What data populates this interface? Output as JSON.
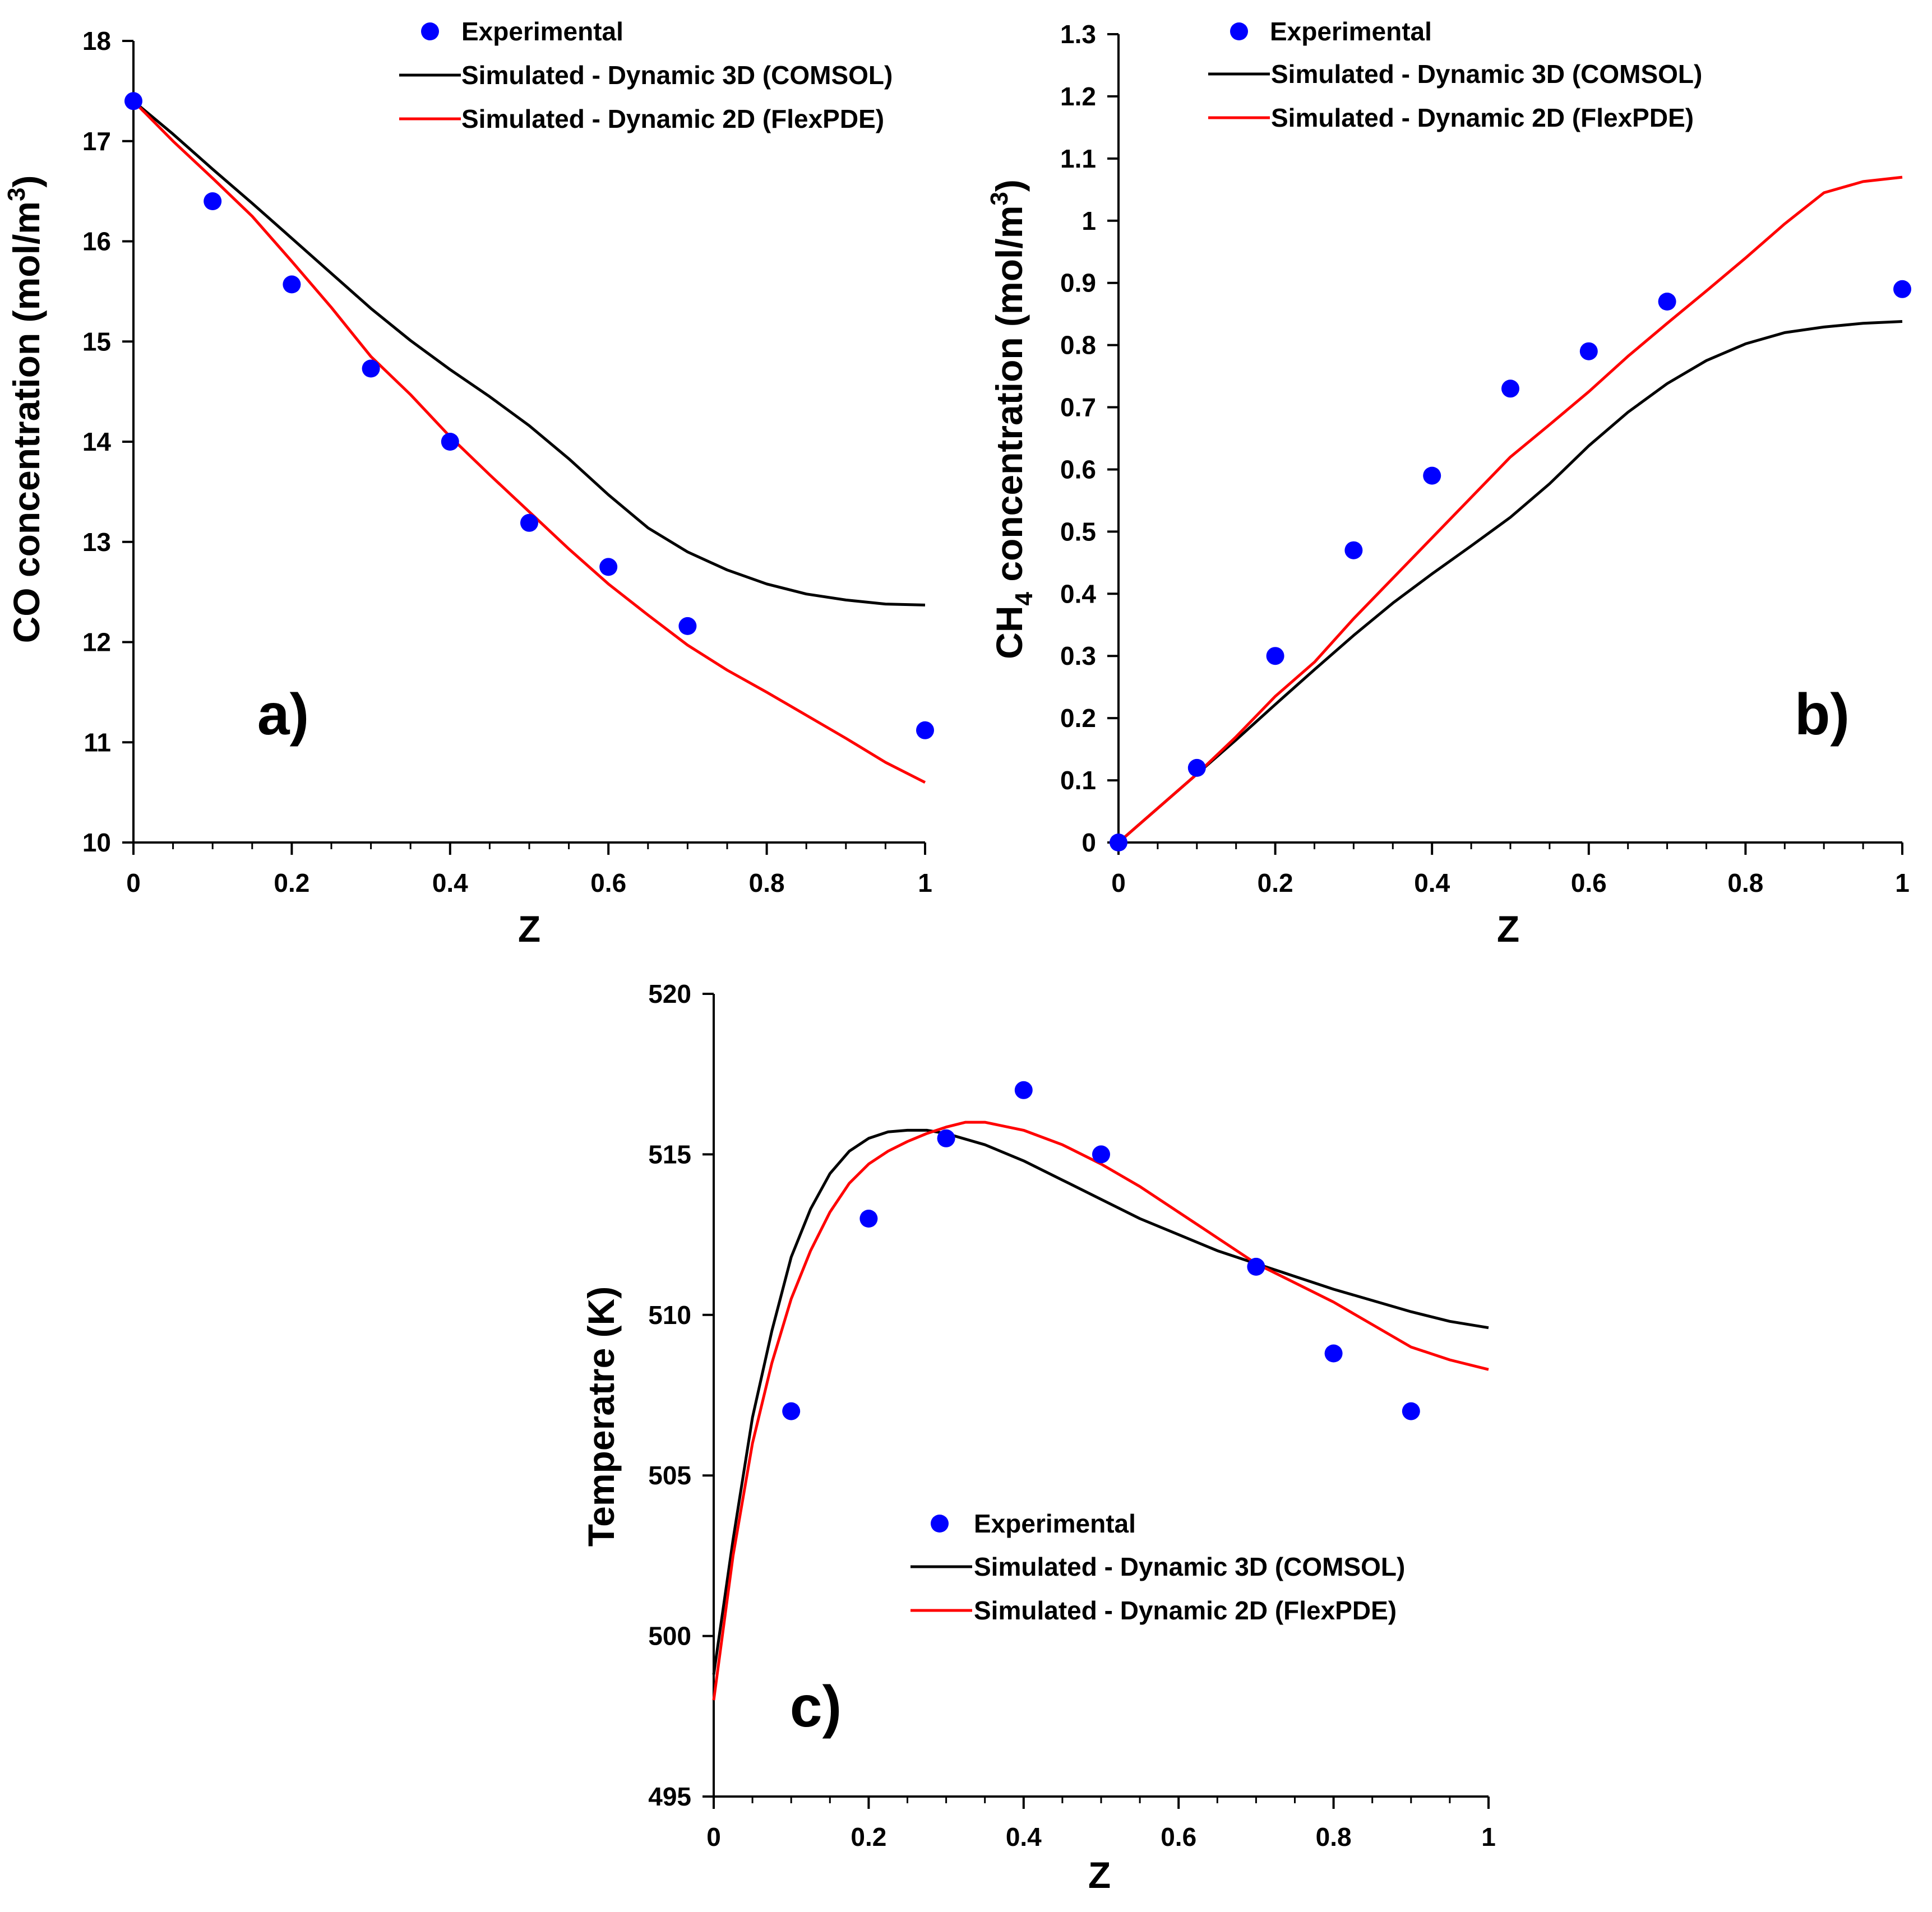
{
  "legend": {
    "experimental": "Experimental",
    "sim3d": "Simulated - Dynamic 3D (COMSOL)",
    "sim2d": "Simulated - Dynamic 2D (FlexPDE)"
  },
  "colors": {
    "experimental": "#0000ff",
    "sim3d": "#000000",
    "sim2d": "#ff0000",
    "axis": "#000000"
  },
  "chart_data": [
    {
      "id": "a",
      "type": "line",
      "panel_label": "a)",
      "xlabel": "Z",
      "ylabel": "CO concentration (mol/m3)",
      "ylabel_parts": {
        "main": "CO concentration (mol/m",
        "sup": "3",
        "close": ")"
      },
      "xlim": [
        0,
        1
      ],
      "ylim": [
        10,
        18
      ],
      "xticks": [
        0,
        0.2,
        0.4,
        0.6,
        0.8,
        1
      ],
      "xtick_labels": [
        "0",
        "0.2",
        "0.4",
        "0.6",
        "0.8",
        "1"
      ],
      "yticks": [
        10,
        11,
        12,
        13,
        14,
        15,
        16,
        17,
        18
      ],
      "ytick_labels": [
        "10",
        "11",
        "12",
        "13",
        "14",
        "15",
        "16",
        "17",
        "18"
      ],
      "minor_x_step": 0.05,
      "series": [
        {
          "name": "Experimental",
          "style": "scatter",
          "x": [
            0,
            0.1,
            0.2,
            0.3,
            0.4,
            0.5,
            0.6,
            0.7,
            1.0
          ],
          "y": [
            17.4,
            16.4,
            15.57,
            14.73,
            14.0,
            13.19,
            12.75,
            12.16,
            11.12
          ]
        },
        {
          "name": "Simulated - Dynamic 3D (COMSOL)",
          "style": "line",
          "x": [
            0,
            0.05,
            0.1,
            0.15,
            0.2,
            0.25,
            0.3,
            0.35,
            0.4,
            0.45,
            0.5,
            0.55,
            0.6,
            0.65,
            0.7,
            0.75,
            0.8,
            0.85,
            0.9,
            0.95,
            1.0
          ],
          "y": [
            17.4,
            17.07,
            16.72,
            16.38,
            16.03,
            15.68,
            15.33,
            15.01,
            14.72,
            14.45,
            14.16,
            13.83,
            13.47,
            13.14,
            12.9,
            12.72,
            12.58,
            12.48,
            12.42,
            12.38,
            12.37
          ]
        },
        {
          "name": "Simulated - Dynamic 2D (FlexPDE)",
          "style": "line",
          "x": [
            0,
            0.05,
            0.1,
            0.15,
            0.2,
            0.25,
            0.3,
            0.35,
            0.4,
            0.45,
            0.5,
            0.55,
            0.6,
            0.65,
            0.7,
            0.75,
            0.8,
            0.85,
            0.9,
            0.95,
            1.0
          ],
          "y": [
            17.4,
            17.0,
            16.63,
            16.25,
            15.8,
            15.34,
            14.85,
            14.47,
            14.05,
            13.67,
            13.3,
            12.93,
            12.58,
            12.27,
            11.97,
            11.72,
            11.5,
            11.27,
            11.04,
            10.8,
            10.6
          ]
        }
      ]
    },
    {
      "id": "b",
      "type": "line",
      "panel_label": "b)",
      "xlabel": "Z",
      "ylabel": "CH4 concentration (mol/m3)",
      "ylabel_parts": {
        "pre": "CH",
        "sub": "4",
        "main": " concentration (mol/m",
        "sup": "3",
        "close": ")"
      },
      "xlim": [
        0,
        1
      ],
      "ylim": [
        0,
        1.3
      ],
      "xticks": [
        0,
        0.2,
        0.4,
        0.6,
        0.8,
        1
      ],
      "xtick_labels": [
        "0",
        "0.2",
        "0.4",
        "0.6",
        "0.8",
        "1"
      ],
      "yticks": [
        0,
        0.1,
        0.2,
        0.3,
        0.4,
        0.5,
        0.6,
        0.7,
        0.8,
        0.9,
        1.0,
        1.1,
        1.2,
        1.3
      ],
      "ytick_labels": [
        "0",
        "0.1",
        "0.2",
        "0.3",
        "0.4",
        "0.5",
        "0.6",
        "0.7",
        "0.8",
        "0.9",
        "1",
        "1.1",
        "1.2",
        "1.3"
      ],
      "minor_x_step": 0.05,
      "series": [
        {
          "name": "Experimental",
          "style": "scatter",
          "x": [
            0,
            0.1,
            0.2,
            0.3,
            0.4,
            0.5,
            0.6,
            0.7,
            1.0
          ],
          "y": [
            0,
            0.12,
            0.3,
            0.47,
            0.59,
            0.73,
            0.79,
            0.87,
            0.89
          ]
        },
        {
          "name": "Simulated - Dynamic 3D (COMSOL)",
          "style": "line",
          "x": [
            0,
            0.05,
            0.1,
            0.15,
            0.2,
            0.25,
            0.3,
            0.35,
            0.4,
            0.45,
            0.5,
            0.55,
            0.6,
            0.65,
            0.7,
            0.75,
            0.8,
            0.85,
            0.9,
            0.95,
            1.0
          ],
          "y": [
            0,
            0.055,
            0.11,
            0.165,
            0.222,
            0.278,
            0.333,
            0.385,
            0.432,
            0.477,
            0.523,
            0.577,
            0.638,
            0.692,
            0.738,
            0.775,
            0.802,
            0.82,
            0.829,
            0.835,
            0.838
          ]
        },
        {
          "name": "Simulated - Dynamic 2D (FlexPDE)",
          "style": "line",
          "x": [
            0,
            0.05,
            0.1,
            0.15,
            0.2,
            0.25,
            0.3,
            0.35,
            0.4,
            0.45,
            0.5,
            0.55,
            0.6,
            0.65,
            0.7,
            0.75,
            0.8,
            0.85,
            0.9,
            0.95,
            1.0
          ],
          "y": [
            0,
            0.055,
            0.11,
            0.17,
            0.235,
            0.29,
            0.36,
            0.425,
            0.49,
            0.555,
            0.62,
            0.672,
            0.725,
            0.782,
            0.835,
            0.887,
            0.94,
            0.995,
            1.045,
            1.063,
            1.07
          ]
        }
      ]
    },
    {
      "id": "c",
      "type": "line",
      "panel_label": "c)",
      "xlabel": "Z",
      "ylabel": "Temperatre (K)",
      "xlim": [
        0,
        1
      ],
      "ylim": [
        495,
        520
      ],
      "xticks": [
        0,
        0.2,
        0.4,
        0.6,
        0.8,
        1
      ],
      "xtick_labels": [
        "0",
        "0.2",
        "0.4",
        "0.6",
        "0.8",
        "1"
      ],
      "yticks": [
        495,
        500,
        505,
        510,
        515,
        520
      ],
      "ytick_labels": [
        "495",
        "500",
        "505",
        "510",
        "515",
        "520"
      ],
      "minor_x_step": 0.05,
      "series": [
        {
          "name": "Experimental",
          "style": "scatter",
          "x": [
            0.1,
            0.2,
            0.3,
            0.4,
            0.5,
            0.7,
            0.8,
            0.9
          ],
          "y": [
            507.0,
            513.0,
            515.5,
            517.0,
            515.0,
            511.5,
            508.8,
            507.0
          ]
        },
        {
          "name": "Simulated - Dynamic 3D (COMSOL)",
          "style": "line",
          "x": [
            0,
            0.025,
            0.05,
            0.075,
            0.1,
            0.125,
            0.15,
            0.175,
            0.2,
            0.225,
            0.25,
            0.275,
            0.3,
            0.35,
            0.4,
            0.45,
            0.5,
            0.55,
            0.6,
            0.65,
            0.7,
            0.75,
            0.8,
            0.85,
            0.9,
            0.95,
            1.0
          ],
          "y": [
            498.8,
            503.0,
            506.8,
            509.5,
            511.8,
            513.3,
            514.4,
            515.1,
            515.5,
            515.7,
            515.75,
            515.75,
            515.65,
            515.3,
            514.8,
            514.2,
            513.6,
            513.0,
            512.5,
            512.0,
            511.6,
            511.2,
            510.8,
            510.45,
            510.1,
            509.8,
            509.6
          ]
        },
        {
          "name": "Simulated - Dynamic 2D (FlexPDE)",
          "style": "line",
          "x": [
            0,
            0.025,
            0.05,
            0.075,
            0.1,
            0.125,
            0.15,
            0.175,
            0.2,
            0.225,
            0.25,
            0.275,
            0.3,
            0.325,
            0.35,
            0.4,
            0.45,
            0.5,
            0.55,
            0.6,
            0.65,
            0.7,
            0.75,
            0.8,
            0.85,
            0.9,
            0.95,
            1.0
          ],
          "y": [
            498.0,
            502.5,
            506.0,
            508.5,
            510.5,
            512.0,
            513.2,
            514.1,
            514.7,
            515.1,
            515.4,
            515.65,
            515.85,
            516.0,
            516.0,
            515.75,
            515.3,
            514.7,
            514.0,
            513.2,
            512.4,
            511.6,
            511.0,
            510.4,
            509.7,
            509.0,
            508.6,
            508.3
          ]
        }
      ]
    }
  ]
}
